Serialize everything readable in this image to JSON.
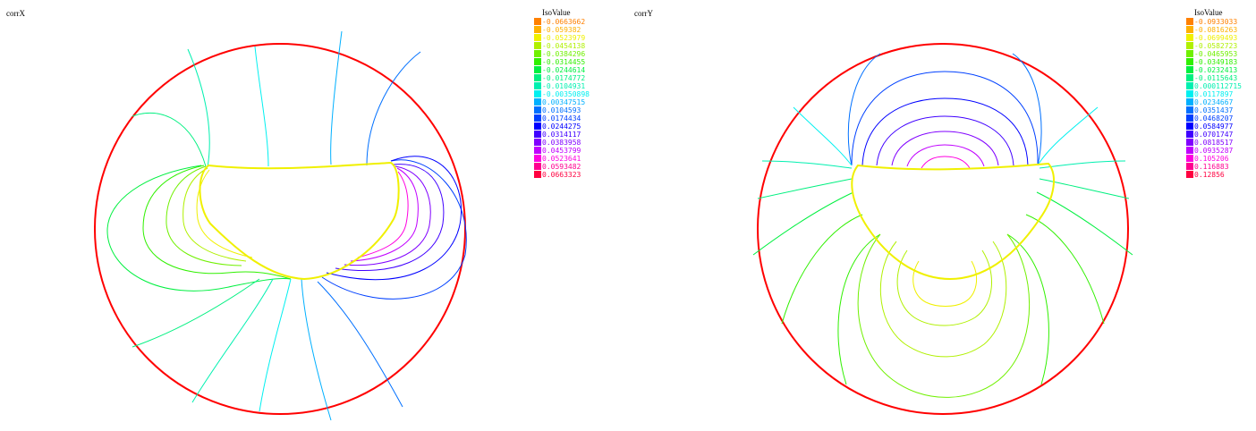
{
  "panels": [
    {
      "title": "corrX",
      "legend_title": "IsoValue",
      "legend": [
        {
          "value": "-0.0663662",
          "color": "#ff8000"
        },
        {
          "value": "-0.059382",
          "color": "#ffb000"
        },
        {
          "value": "-0.0523979",
          "color": "#f0f000"
        },
        {
          "value": "-0.0454138",
          "color": "#b0f000"
        },
        {
          "value": "-0.0384296",
          "color": "#70f000"
        },
        {
          "value": "-0.0314455",
          "color": "#30f000"
        },
        {
          "value": "-0.0244614",
          "color": "#00f040"
        },
        {
          "value": "-0.0174772",
          "color": "#00f080"
        },
        {
          "value": "-0.0104931",
          "color": "#00f0b0"
        },
        {
          "value": "-0.00350898",
          "color": "#00f0f0"
        },
        {
          "value": "0.00347515",
          "color": "#00b0ff"
        },
        {
          "value": "0.0104593",
          "color": "#0070ff"
        },
        {
          "value": "0.0174434",
          "color": "#0040ff"
        },
        {
          "value": "0.0244275",
          "color": "#0000ff"
        },
        {
          "value": "0.0314117",
          "color": "#4000ff"
        },
        {
          "value": "0.0383958",
          "color": "#8000ff"
        },
        {
          "value": "0.0453799",
          "color": "#c000ff"
        },
        {
          "value": "0.0523641",
          "color": "#ff00e0"
        },
        {
          "value": "0.0593482",
          "color": "#ff0090"
        },
        {
          "value": "0.0663323",
          "color": "#ff0040"
        }
      ]
    },
    {
      "title": "corrY",
      "legend_title": "IsoValue",
      "legend": [
        {
          "value": "-0.0933033",
          "color": "#ff8000"
        },
        {
          "value": "-0.0816263",
          "color": "#ffb000"
        },
        {
          "value": "-0.0699493",
          "color": "#f0f000"
        },
        {
          "value": "-0.0582723",
          "color": "#b0f000"
        },
        {
          "value": "-0.0465953",
          "color": "#70f000"
        },
        {
          "value": "-0.0349183",
          "color": "#30f000"
        },
        {
          "value": "-0.0232413",
          "color": "#00f040"
        },
        {
          "value": "-0.0115643",
          "color": "#00f080"
        },
        {
          "value": "0.000112715",
          "color": "#00f0b0"
        },
        {
          "value": "0.0117897",
          "color": "#00f0f0"
        },
        {
          "value": "0.0234667",
          "color": "#00b0ff"
        },
        {
          "value": "0.0351437",
          "color": "#0070ff"
        },
        {
          "value": "0.0468207",
          "color": "#0040ff"
        },
        {
          "value": "0.0584977",
          "color": "#0000ff"
        },
        {
          "value": "0.0701747",
          "color": "#4000ff"
        },
        {
          "value": "0.0818517",
          "color": "#8000ff"
        },
        {
          "value": "0.0935287",
          "color": "#c000ff"
        },
        {
          "value": "0.105206",
          "color": "#ff00e0"
        },
        {
          "value": "0.116883",
          "color": "#ff0090"
        },
        {
          "value": "0.12856",
          "color": "#ff0040"
        }
      ]
    }
  ],
  "colors": {
    "boundary": "#ff0000",
    "inner_boundary": "#f0f000"
  }
}
